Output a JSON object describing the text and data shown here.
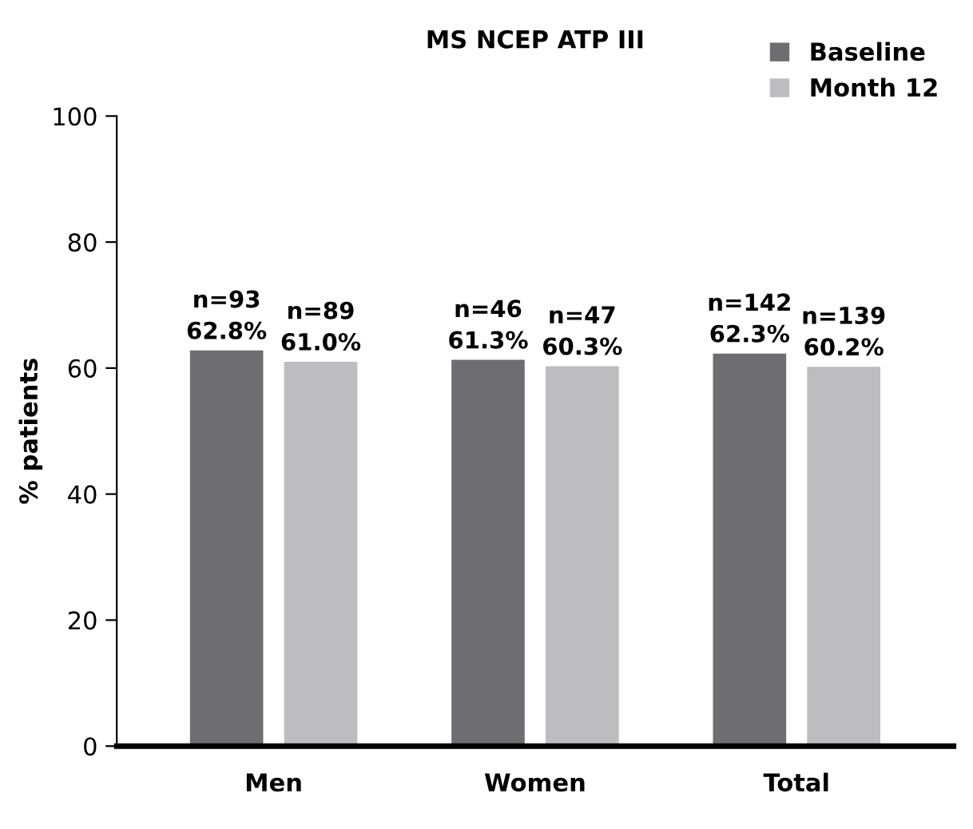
{
  "chart_data": {
    "type": "bar",
    "title": "MS NCEP ATP III",
    "ylabel": "% patients",
    "categories": [
      "Men",
      "Women",
      "Total"
    ],
    "series": [
      {
        "name": "Baseline",
        "color": "#6d6e71",
        "values": [
          62.8,
          61.3,
          62.3
        ],
        "value_labels": [
          "n=93\n62.8%",
          "n=46\n61.3%",
          "n=142\n62.3%"
        ]
      },
      {
        "name": "Month 12",
        "color": "#bcbdc0",
        "values": [
          61.0,
          60.3,
          60.2
        ],
        "value_labels": [
          "n=89\n61.0%",
          "n=47\n60.3%",
          "n=139\n60.2%"
        ]
      }
    ],
    "ylim": [
      0,
      100
    ],
    "yticks": [
      0,
      20,
      40,
      60,
      80,
      100
    ],
    "grid": false,
    "legend": "top right"
  }
}
